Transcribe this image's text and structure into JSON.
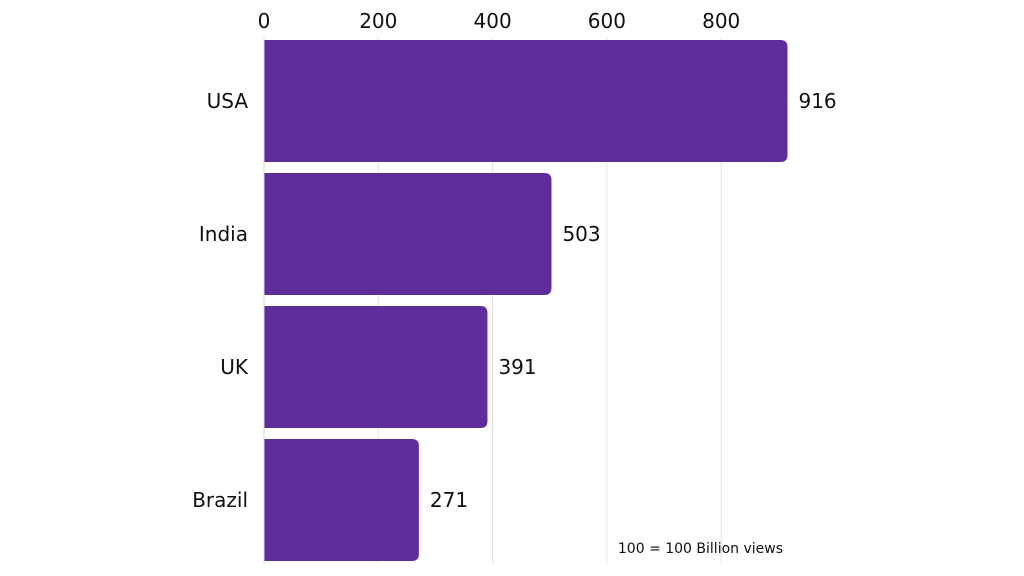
{
  "chart_data": {
    "type": "bar",
    "orientation": "horizontal",
    "categories": [
      "USA",
      "India",
      "UK",
      "Brazil"
    ],
    "values": [
      916,
      503,
      391,
      271
    ],
    "xticks": [
      0,
      200,
      400,
      600,
      800
    ],
    "xlim": [
      0,
      920
    ],
    "title": "",
    "xlabel": "",
    "ylabel": "",
    "x_axis_position": "top",
    "grid": true,
    "data_labels": true,
    "bar_color": "#5e2d9b",
    "note": "100 = 100 Billion views"
  }
}
